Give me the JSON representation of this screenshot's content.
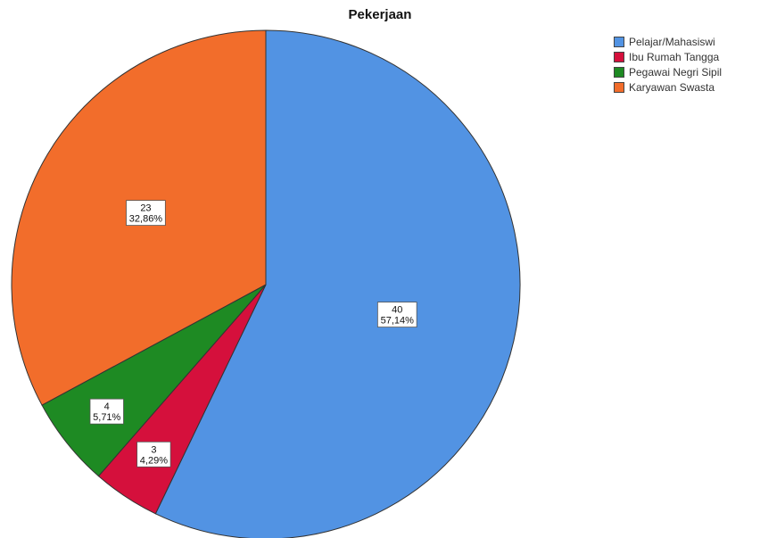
{
  "chart_data": {
    "type": "pie",
    "title": "Pekerjaan",
    "legend_position": "top-right",
    "slices": [
      {
        "name": "Pelajar/Mahasiswi",
        "count": "40",
        "percent": "57,14%",
        "value": 40,
        "color": "#5293e3"
      },
      {
        "name": "Ibu Rumah Tangga",
        "count": "3",
        "percent": "4,29%",
        "value": 3,
        "color": "#d5103c"
      },
      {
        "name": "Pegawai Negri Sipil",
        "count": "4",
        "percent": "5,71%",
        "value": 4,
        "color": "#1e8a23"
      },
      {
        "name": "Karyawan Swasta",
        "count": "23",
        "percent": "32,86%",
        "value": 23,
        "color": "#f26d2b"
      }
    ]
  }
}
